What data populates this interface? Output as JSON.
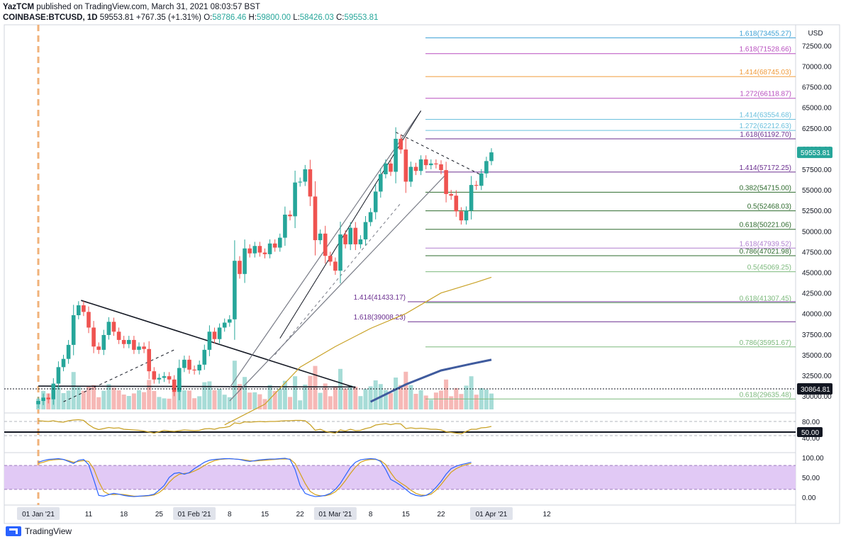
{
  "header": {
    "line1_author": "YazTCM",
    "line1_rest": "published on TradingView.com, March 31, 2021 08:03:57 BST",
    "symbol": "COINBASE:BTCUSD, 1D",
    "last": "59553.81",
    "change": "+767.35 (+1.31%)",
    "o_label": "O:",
    "o": "58786.46",
    "h_label": "H:",
    "h": "59800.00",
    "l_label": "L:",
    "l": "58426.03",
    "c_label": "C:",
    "c": "59553.81"
  },
  "footer": {
    "brand": "TradingView"
  },
  "chart_data": {
    "type": "candlestick",
    "currency": "USD",
    "price_axis_ticks": [
      30000,
      32500,
      35000,
      37500,
      40000,
      42500,
      45000,
      47500,
      50000,
      52500,
      55000,
      57500,
      60000,
      62500,
      65000,
      67500,
      70000,
      72500
    ],
    "price_axis_labels": [
      "30000.00",
      "32500.00",
      "35000.00",
      "37500.00",
      "40000.00",
      "42500.00",
      "45000.00",
      "47500.00",
      "50000.00",
      "52500.00",
      "55000.00",
      "57500.00",
      "60000.00",
      "62500.00",
      "65000.00",
      "67500.00",
      "70000.00",
      "72500.00"
    ],
    "time_labels": [
      {
        "day": 0,
        "text": "01 Jan '21",
        "boxed": true
      },
      {
        "day": 10,
        "text": "11"
      },
      {
        "day": 17,
        "text": "18"
      },
      {
        "day": 24,
        "text": "25"
      },
      {
        "day": 31,
        "text": "01 Feb '21",
        "boxed": true
      },
      {
        "day": 38,
        "text": "8"
      },
      {
        "day": 45,
        "text": "15"
      },
      {
        "day": 52,
        "text": "22"
      },
      {
        "day": 59,
        "text": "01 Mar '21",
        "boxed": true
      },
      {
        "day": 66,
        "text": "8"
      },
      {
        "day": 73,
        "text": "15"
      },
      {
        "day": 80,
        "text": "22"
      },
      {
        "day": 90,
        "text": "01 Apr '21",
        "boxed": true
      },
      {
        "day": 101,
        "text": "12"
      }
    ],
    "closes": [
      29400,
      29800,
      29600,
      31500,
      33500,
      34500,
      36200,
      39800,
      41000,
      40200,
      38300,
      36000,
      35600,
      37400,
      39000,
      37800,
      36800,
      36300,
      36800,
      35600,
      36000,
      35700,
      33000,
      32000,
      32200,
      32400,
      32000,
      30500,
      33400,
      34400,
      33200,
      33100,
      33800,
      35600,
      37800,
      36900,
      38300,
      38900,
      39300,
      46400,
      44800,
      47900,
      47300,
      48200,
      47400,
      47200,
      48500,
      48000,
      49200,
      52000,
      51800,
      55900,
      56000,
      57500,
      54200,
      48900,
      49700,
      47000,
      46300,
      45200,
      49600,
      48400,
      50400,
      48400,
      49000,
      51100,
      52300,
      54800,
      56900,
      58200,
      57200,
      61200,
      59900,
      56000,
      57800,
      57300,
      58700,
      58000,
      58200,
      58100,
      57400,
      54500,
      54300,
      52400,
      51300,
      52500,
      55600,
      55500,
      57000,
      58500,
      59553
    ],
    "ma_line": [
      [
        37,
        26500
      ],
      [
        45,
        29000
      ],
      [
        52,
        33500
      ],
      [
        59,
        36000
      ],
      [
        66,
        38200
      ],
      [
        73,
        40000
      ],
      [
        80,
        42500
      ],
      [
        87,
        43800
      ],
      [
        90,
        44400
      ]
    ],
    "blue_ma_line": [
      [
        66,
        29300
      ],
      [
        73,
        31400
      ],
      [
        80,
        33100
      ],
      [
        86,
        33900
      ],
      [
        90,
        34400
      ]
    ],
    "fib_levels": [
      {
        "label": "1.618(73455.27)",
        "value": 73455.27,
        "color": "#3a9fd4",
        "side": "right"
      },
      {
        "label": "1.618(71528.66)",
        "value": 71528.66,
        "color": "#b84fbf",
        "side": "right"
      },
      {
        "label": "1.414(68745.03)",
        "value": 68745.03,
        "color": "#f09a3a",
        "side": "right"
      },
      {
        "label": "1.272(66118.87)",
        "value": 66118.87,
        "color": "#b84fbf",
        "side": "right"
      },
      {
        "label": "1.414(63554.68)",
        "value": 63554.68,
        "color": "#6bc0dd",
        "side": "right"
      },
      {
        "label": "1.272(62212.63)",
        "value": 62212.63,
        "color": "#6bc0dd",
        "side": "right"
      },
      {
        "label": "1.618(61192.70)",
        "value": 61192.7,
        "color": "#6a2e8f",
        "side": "right"
      },
      {
        "label": "1.414(57172.25)",
        "value": 57172.25,
        "color": "#6a2e8f",
        "side": "right"
      },
      {
        "label": "0.382(54715.00)",
        "value": 54715.0,
        "color": "#2e6b2e",
        "side": "right"
      },
      {
        "label": "0.5(52468.03)",
        "value": 52468.03,
        "color": "#2e6b2e",
        "side": "right"
      },
      {
        "label": "0.618(50221.06)",
        "value": 50221.06,
        "color": "#2e6b2e",
        "side": "right"
      },
      {
        "label": "1.618(47939.52)",
        "value": 47939.52,
        "color": "#b07fcf",
        "side": "right"
      },
      {
        "label": "0.786(47021.98)",
        "value": 47021.98,
        "color": "#2e6b2e",
        "side": "right"
      },
      {
        "label": "0.5(45069.25)",
        "value": 45069.25,
        "color": "#7cb97c",
        "side": "right"
      },
      {
        "label": "1.414(41433.17)",
        "value": 41433.17,
        "color": "#6a2e8f",
        "side": "mid"
      },
      {
        "label": "0.618(41307.45)",
        "value": 41307.45,
        "color": "#7cb97c",
        "side": "right"
      },
      {
        "label": "1.618(39008.23)",
        "value": 39008.23,
        "color": "#6a2e8f",
        "side": "mid"
      },
      {
        "label": "0.786(35951.67)",
        "value": 35951.67,
        "color": "#7cb97c",
        "side": "right"
      },
      {
        "label": "0.618(29635.48)",
        "value": 29635.48,
        "color": "#7cb97c",
        "side": "right"
      }
    ],
    "price_tags": [
      {
        "label": "59553.81",
        "value": 59553.81,
        "color": "#26a69a"
      },
      {
        "label": "30864.81",
        "value": 30864.81,
        "color": "#131722"
      }
    ],
    "indicator1": {
      "axis_labels": [
        "80.00",
        "50.00",
        "40.00"
      ],
      "level_label": "50.00",
      "color": "#c9a227",
      "values": [
        82,
        81,
        80,
        82,
        79,
        78,
        82,
        84,
        85,
        83,
        71,
        62,
        57,
        60,
        63,
        61,
        62,
        58,
        57,
        56,
        55,
        53,
        50,
        47,
        51,
        55,
        53,
        52,
        54,
        56,
        55,
        54,
        55,
        59,
        60,
        58,
        62,
        63,
        66,
        76,
        74,
        79,
        78,
        79,
        80,
        79,
        80,
        80,
        81,
        82,
        82,
        83,
        83,
        82,
        71,
        55,
        58,
        52,
        49,
        47,
        56,
        53,
        58,
        54,
        55,
        60,
        63,
        70,
        72,
        74,
        71,
        74,
        73,
        60,
        62,
        60,
        61,
        60,
        58,
        58,
        56,
        51,
        49,
        47,
        45,
        52,
        58,
        58,
        62,
        63,
        66
      ]
    },
    "stoch": {
      "axis_labels": [
        "100.00",
        "50.00",
        "0.00"
      ],
      "band_low": 20,
      "band_high": 80,
      "k_color": "#2962ff",
      "d_color": "#d4a017",
      "k": [
        88,
        92,
        95,
        96,
        97,
        95,
        90,
        85,
        93,
        95,
        82,
        45,
        5,
        3,
        7,
        10,
        8,
        5,
        3,
        2,
        3,
        4,
        5,
        8,
        18,
        30,
        50,
        60,
        62,
        58,
        62,
        72,
        80,
        88,
        93,
        95,
        96,
        97,
        97,
        96,
        95,
        92,
        90,
        92,
        94,
        95,
        96,
        96,
        97,
        98,
        95,
        70,
        30,
        10,
        5,
        2,
        3,
        5,
        10,
        20,
        35,
        55,
        75,
        88,
        94,
        96,
        97,
        96,
        90,
        70,
        45,
        38,
        30,
        20,
        10,
        5,
        3,
        5,
        12,
        25,
        40,
        58,
        72,
        78,
        82,
        85,
        88
      ],
      "d": [
        85,
        88,
        92,
        94,
        95,
        95,
        92,
        88,
        90,
        92,
        90,
        72,
        40,
        15,
        8,
        7,
        8,
        7,
        5,
        3,
        3,
        3,
        4,
        6,
        12,
        22,
        38,
        50,
        58,
        60,
        61,
        66,
        72,
        80,
        87,
        92,
        95,
        96,
        97,
        96,
        95,
        94,
        92,
        91,
        92,
        93,
        94,
        95,
        96,
        96,
        96,
        85,
        60,
        35,
        15,
        7,
        4,
        4,
        7,
        14,
        26,
        42,
        60,
        76,
        88,
        93,
        95,
        95,
        92,
        82,
        62,
        45,
        36,
        28,
        18,
        10,
        6,
        5,
        8,
        18,
        32,
        48,
        63,
        72,
        78,
        82,
        85
      ]
    }
  }
}
